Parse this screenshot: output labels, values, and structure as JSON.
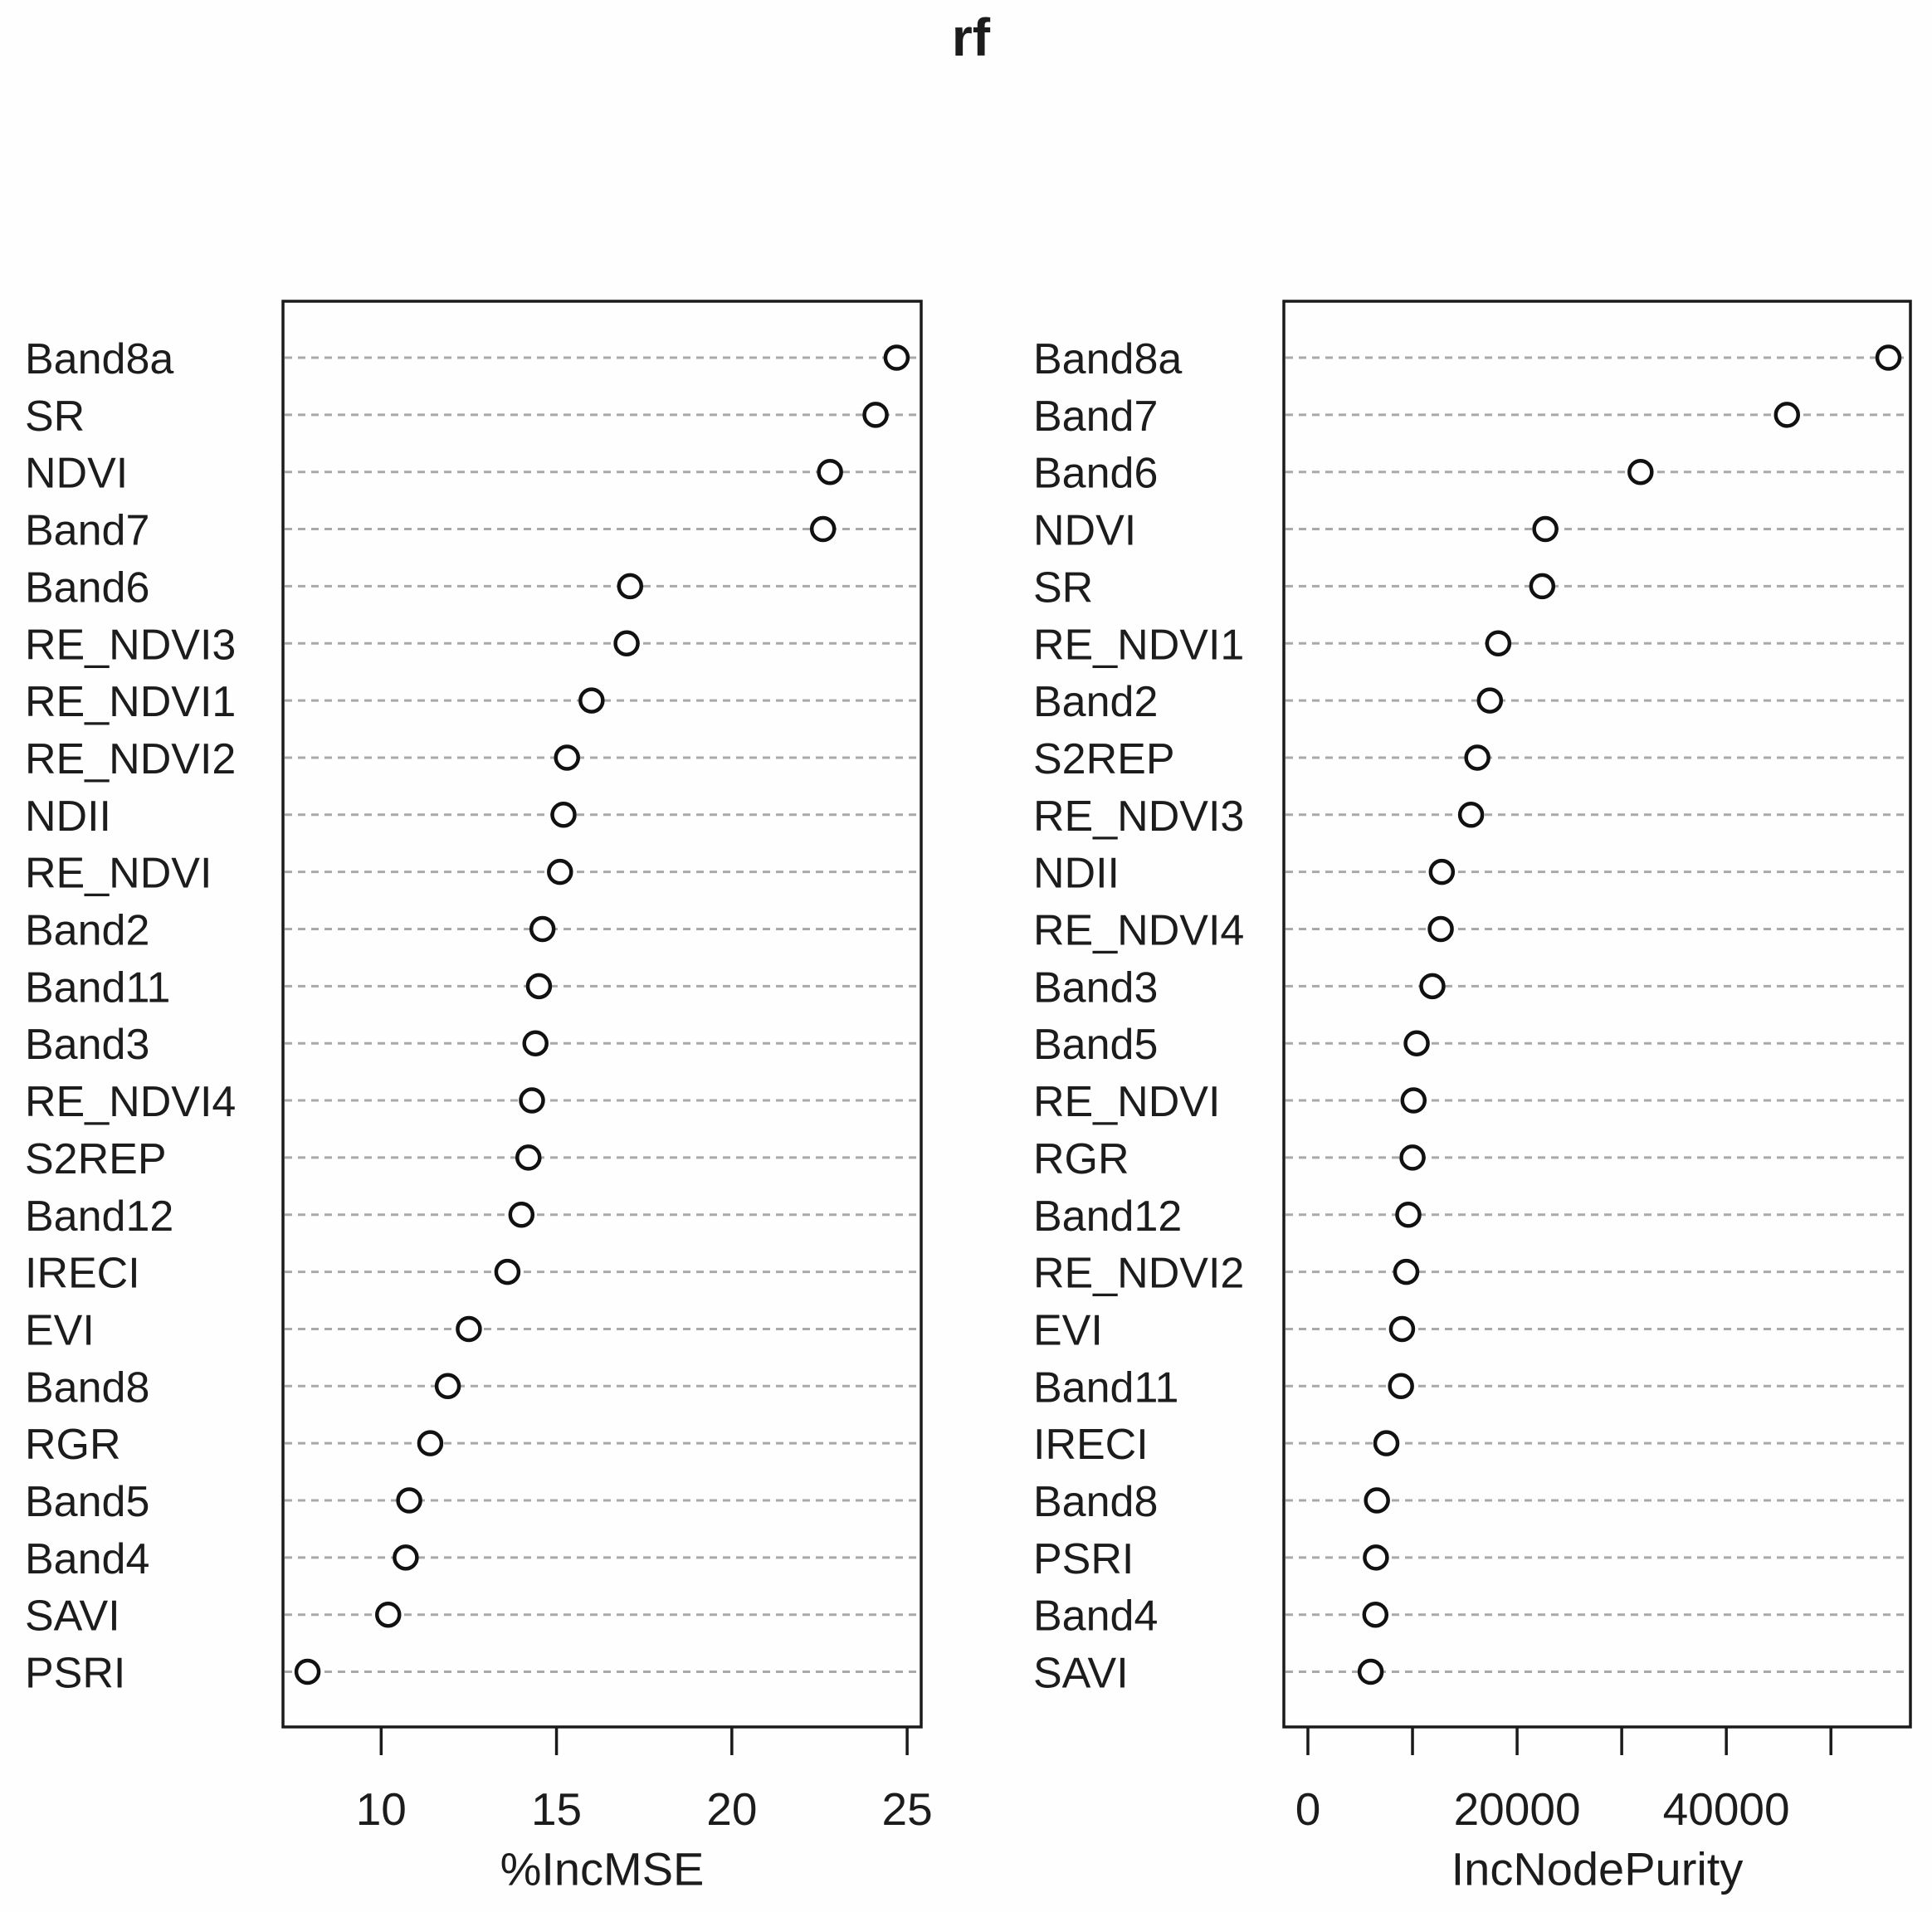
{
  "title": "rf",
  "chart_data": [
    {
      "type": "scatter",
      "subtype": "dotchart",
      "panel": "left",
      "xlabel": "%IncMSE",
      "xlim": [
        7.2,
        25.4
      ],
      "xticks": [
        10,
        15,
        20,
        25
      ],
      "xtick_labels": [
        "10",
        "15",
        "20",
        "25"
      ],
      "grid": "horizontal-dashed",
      "marker": "open-circle",
      "categories": [
        "Band8a",
        "SR",
        "NDVI",
        "Band7",
        "Band6",
        "RE_NDVI3",
        "RE_NDVI1",
        "RE_NDVI2",
        "NDII",
        "RE_NDVI",
        "Band2",
        "Band11",
        "Band3",
        "RE_NDVI4",
        "S2REP",
        "Band12",
        "IRECI",
        "EVI",
        "Band8",
        "RGR",
        "Band5",
        "Band4",
        "SAVI",
        "PSRI"
      ],
      "values": [
        24.7,
        24.1,
        22.8,
        22.6,
        17.1,
        17.0,
        16.0,
        15.3,
        15.2,
        15.1,
        14.6,
        14.5,
        14.4,
        14.3,
        14.2,
        14.0,
        13.6,
        12.5,
        11.9,
        11.4,
        10.8,
        10.7,
        10.2,
        7.9
      ]
    },
    {
      "type": "scatter",
      "subtype": "dotchart",
      "panel": "right",
      "xlabel": "IncNodePurity",
      "xlim": [
        -2300,
        57600
      ],
      "xticks": [
        0,
        10000,
        20000,
        30000,
        40000,
        50000
      ],
      "xtick_labels": [
        "0",
        "",
        "20000",
        "",
        "40000",
        ""
      ],
      "grid": "horizontal-dashed",
      "marker": "open-circle",
      "categories": [
        "Band8a",
        "Band7",
        "Band6",
        "NDVI",
        "SR",
        "RE_NDVI1",
        "Band2",
        "S2REP",
        "RE_NDVI3",
        "NDII",
        "RE_NDVI4",
        "Band3",
        "Band5",
        "RE_NDVI",
        "RGR",
        "Band12",
        "RE_NDVI2",
        "EVI",
        "Band11",
        "IRECI",
        "Band8",
        "PSRI",
        "Band4",
        "SAVI"
      ],
      "values": [
        55500,
        45800,
        31800,
        22700,
        22400,
        18200,
        17400,
        16200,
        15600,
        12800,
        12700,
        11900,
        10400,
        10100,
        10000,
        9600,
        9400,
        9000,
        8900,
        7500,
        6600,
        6500,
        6450,
        6000
      ]
    }
  ],
  "style": {
    "point_color": "#111111",
    "grid_color": "#a9a9a9",
    "border_color": "#1a1a1a",
    "background": "#fefefe"
  }
}
